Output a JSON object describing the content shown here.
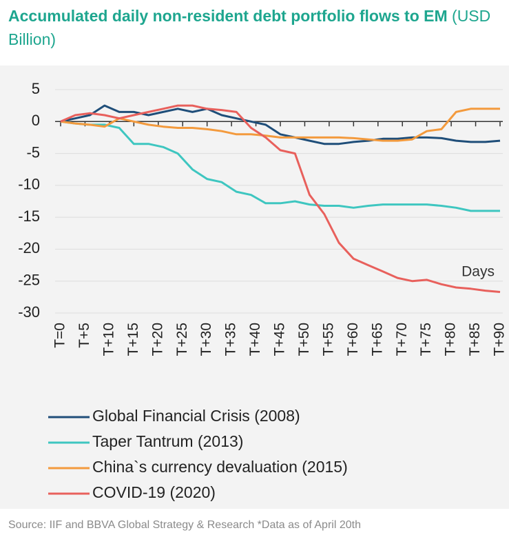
{
  "chart_data": {
    "type": "line",
    "title": "Accumulated daily non-resident debt portfolio flows to EM",
    "units": "(USD Billion)",
    "annotation": "Days",
    "source": "Source: IIF and BBVA Global Strategy & Research *Data as of April 20th",
    "x": [
      0,
      3,
      6,
      9,
      12,
      15,
      18,
      21,
      24,
      27,
      30,
      33,
      36,
      39,
      42,
      45,
      48,
      51,
      54,
      57,
      60,
      63,
      66,
      69,
      72,
      75,
      78,
      81,
      84,
      87,
      90
    ],
    "xlim": [
      0,
      90
    ],
    "xticks": [
      {
        "value": 0,
        "label": "T=0"
      },
      {
        "value": 5,
        "label": "T+5"
      },
      {
        "value": 10,
        "label": "T+10"
      },
      {
        "value": 15,
        "label": "T+15"
      },
      {
        "value": 20,
        "label": "T+20"
      },
      {
        "value": 25,
        "label": "T+25"
      },
      {
        "value": 30,
        "label": "T+30"
      },
      {
        "value": 35,
        "label": "T+35"
      },
      {
        "value": 40,
        "label": "T+40"
      },
      {
        "value": 45,
        "label": "T+45"
      },
      {
        "value": 50,
        "label": "T+50"
      },
      {
        "value": 55,
        "label": "T+55"
      },
      {
        "value": 60,
        "label": "T+60"
      },
      {
        "value": 65,
        "label": "T+65"
      },
      {
        "value": 70,
        "label": "T+70"
      },
      {
        "value": 75,
        "label": "T+75"
      },
      {
        "value": 80,
        "label": "T+80"
      },
      {
        "value": 85,
        "label": "T+85"
      },
      {
        "value": 90,
        "label": "T+90"
      }
    ],
    "ylim": [
      -30,
      5
    ],
    "yticks": [
      5,
      0,
      -5,
      -10,
      -15,
      -20,
      -25,
      -30
    ],
    "grid": true,
    "legend": "bottom",
    "series": [
      {
        "name": "Global Financial Crisis (2008)",
        "color": "#1f4e79",
        "values": [
          0,
          0.5,
          1,
          2.5,
          1.5,
          1.5,
          1,
          1.5,
          2,
          1.5,
          2,
          1,
          0.5,
          0,
          -0.5,
          -2,
          -2.5,
          -3,
          -3.5,
          -3.5,
          -3.2,
          -3,
          -2.7,
          -2.7,
          -2.5,
          -2.5,
          -2.6,
          -3,
          -3.2,
          -3.2,
          -3
        ]
      },
      {
        "name": "Taper Tantrum (2013)",
        "color": "#3ec6c0",
        "values": [
          0,
          -0.3,
          -0.5,
          -0.5,
          -1,
          -3.5,
          -3.5,
          -4,
          -5,
          -7.5,
          -9,
          -9.5,
          -11,
          -11.5,
          -12.8,
          -12.8,
          -12.5,
          -13,
          -13.2,
          -13.2,
          -13.5,
          -13.2,
          -13,
          -13,
          -13,
          -13,
          -13.2,
          -13.5,
          -14,
          -14,
          -14
        ]
      },
      {
        "name": "China`s currency devaluation (2015)",
        "color": "#f39a3d",
        "values": [
          0,
          -0.3,
          -0.5,
          -0.8,
          0.5,
          0,
          -0.5,
          -0.8,
          -1,
          -1,
          -1.2,
          -1.5,
          -2,
          -2,
          -2.2,
          -2.5,
          -2.5,
          -2.5,
          -2.5,
          -2.5,
          -2.6,
          -2.8,
          -3,
          -3,
          -2.8,
          -1.5,
          -1.2,
          1.5,
          2,
          2,
          2
        ]
      },
      {
        "name": "COVID-19 (2020)",
        "color": "#e8605c",
        "values": [
          0,
          1,
          1.3,
          1,
          0.5,
          1,
          1.5,
          2,
          2.5,
          2.5,
          2,
          1.8,
          1.5,
          -1,
          -2.5,
          -4.5,
          -5,
          -11.5,
          -14.5,
          -19,
          -21.5,
          -22.5,
          -23.5,
          -24.5,
          -25,
          -24.8,
          -25.5,
          -26,
          -26.2,
          -26.5,
          -26.7
        ]
      }
    ]
  }
}
